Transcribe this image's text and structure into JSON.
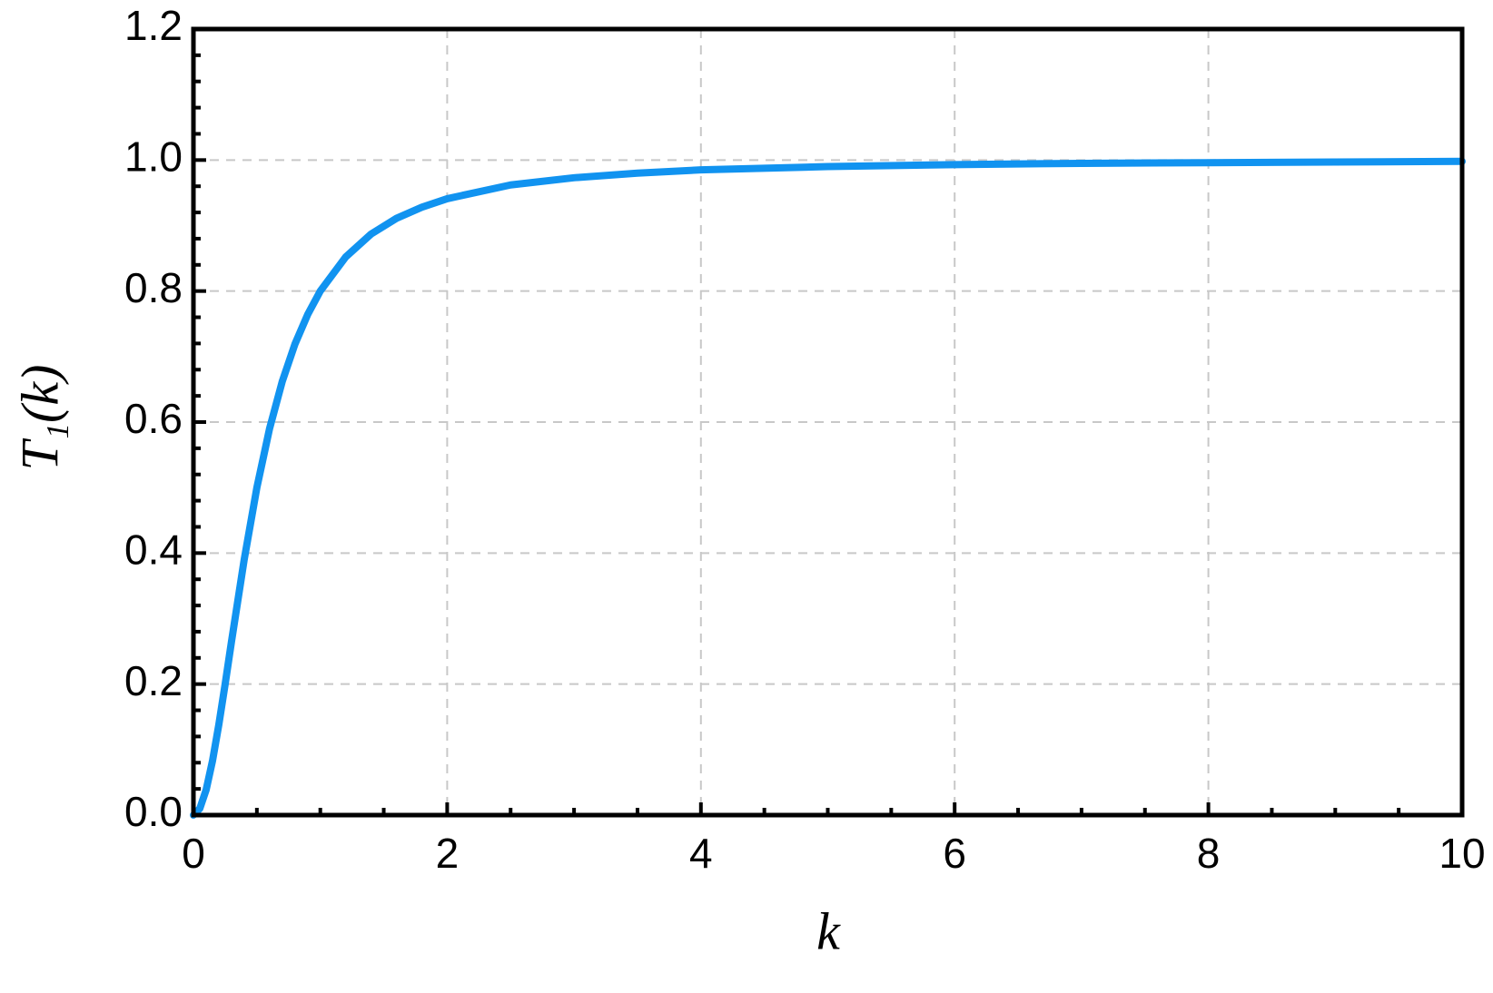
{
  "chart_data": {
    "type": "line",
    "xlabel": "k",
    "ylabel": "T₁(k)",
    "x": [
      0,
      0.05,
      0.1,
      0.15,
      0.2,
      0.25,
      0.3,
      0.4,
      0.5,
      0.6,
      0.7,
      0.8,
      0.9,
      1,
      1.2,
      1.4,
      1.6,
      1.8,
      2,
      2.5,
      3,
      3.5,
      4,
      5,
      6,
      7,
      8,
      9,
      10
    ],
    "series": [
      {
        "color": "#1193f0",
        "values": [
          0,
          0.0099,
          0.0385,
          0.0826,
          0.138,
          0.2,
          0.265,
          0.39,
          0.5,
          0.59,
          0.662,
          0.719,
          0.764,
          0.8,
          0.852,
          0.887,
          0.911,
          0.928,
          0.941,
          0.962,
          0.973,
          0.98,
          0.985,
          0.99,
          0.993,
          0.995,
          0.996,
          0.997,
          0.998
        ]
      }
    ],
    "xlim": [
      0,
      10
    ],
    "ylim": [
      0,
      1.2
    ],
    "xticks": [
      0,
      2,
      4,
      6,
      8,
      10
    ],
    "yticks": [
      {
        "value": 0,
        "label": "0.0"
      },
      0.2,
      0.4,
      0.6,
      0.8,
      {
        "value": 1,
        "label": "1.0"
      },
      1.2
    ],
    "xminorticks": [
      0.5,
      1,
      1.5,
      2.5,
      3,
      3.5,
      4.5,
      5,
      5.5,
      6.5,
      7,
      7.5,
      8.5,
      9,
      9.5
    ],
    "yminorticks": [
      0.04,
      0.08,
      0.12,
      0.16,
      0.24,
      0.28,
      0.32,
      0.36,
      0.44,
      0.48,
      0.52,
      0.56,
      0.64,
      0.68,
      0.72,
      0.76,
      0.84,
      0.88,
      0.92,
      0.96,
      1.04,
      1.08,
      1.12,
      1.16
    ],
    "grid": true
  }
}
